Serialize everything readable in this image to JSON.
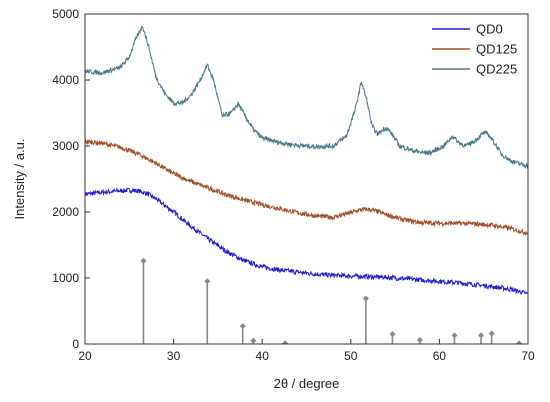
{
  "chart_data": {
    "type": "line",
    "xlabel": "2θ / degree",
    "ylabel": "Intensity / a.u.",
    "xlim": [
      20,
      70
    ],
    "ylim": [
      0,
      5000
    ],
    "x_ticks": [
      20,
      30,
      40,
      50,
      60,
      70
    ],
    "y_ticks": [
      0,
      1000,
      2000,
      3000,
      4000,
      5000
    ],
    "legend_position": "top-right",
    "series": [
      {
        "name": "QD0",
        "color": "#2222cc",
        "x": [
          20,
          22,
          24,
          25,
          26,
          27,
          28,
          30,
          32,
          34,
          36,
          38,
          40,
          42,
          44,
          46,
          48,
          50,
          52,
          54,
          56,
          58,
          60,
          62,
          64,
          66,
          68,
          70
        ],
        "y": [
          2270,
          2300,
          2320,
          2330,
          2320,
          2280,
          2200,
          2000,
          1780,
          1580,
          1400,
          1260,
          1170,
          1120,
          1090,
          1060,
          1040,
          1030,
          1020,
          1010,
          990,
          970,
          950,
          930,
          900,
          870,
          830,
          760
        ]
      },
      {
        "name": "QD125",
        "color": "#a0522d",
        "x": [
          20,
          22,
          24,
          26,
          28,
          30,
          32,
          34,
          36,
          38,
          40,
          42,
          44,
          46,
          48,
          50,
          51,
          52,
          53,
          54,
          56,
          58,
          60,
          62,
          64,
          66,
          68,
          70
        ],
        "y": [
          3070,
          3040,
          2980,
          2880,
          2740,
          2580,
          2460,
          2360,
          2260,
          2180,
          2110,
          2050,
          1990,
          1940,
          1920,
          1990,
          2030,
          2040,
          2010,
          1960,
          1880,
          1840,
          1830,
          1830,
          1820,
          1800,
          1750,
          1680
        ]
      },
      {
        "name": "QD225",
        "color": "#4a7a8c",
        "x": [
          20,
          22,
          24,
          25,
          25.8,
          26.5,
          27.2,
          28,
          29,
          30,
          31,
          32,
          33,
          33.8,
          34.5,
          35.5,
          36.5,
          37.3,
          38,
          39,
          40,
          42,
          44,
          46,
          48,
          49.5,
          50.5,
          51.2,
          51.8,
          52.4,
          53,
          54,
          54.8,
          55.5,
          57,
          58,
          59,
          60.5,
          61.5,
          62.2,
          63,
          64,
          65,
          65.5,
          66.2,
          67,
          68,
          69,
          70
        ],
        "y": [
          4130,
          4110,
          4190,
          4350,
          4640,
          4820,
          4500,
          4050,
          3800,
          3650,
          3650,
          3780,
          4000,
          4230,
          4000,
          3450,
          3500,
          3640,
          3470,
          3250,
          3120,
          3050,
          3010,
          2990,
          3000,
          3150,
          3550,
          3980,
          3700,
          3300,
          3180,
          3280,
          3150,
          3000,
          2930,
          2900,
          2900,
          3000,
          3150,
          3050,
          3000,
          3080,
          3200,
          3180,
          3050,
          2880,
          2780,
          2730,
          2700
        ]
      }
    ],
    "reference_peaks": {
      "color": "#888888",
      "x": [
        26.6,
        33.8,
        37.8,
        39.0,
        42.6,
        51.7,
        54.7,
        57.8,
        61.7,
        64.7,
        65.9,
        69.0
      ],
      "y": [
        1260,
        950,
        270,
        50,
        10,
        690,
        150,
        60,
        130,
        130,
        160,
        10
      ]
    }
  }
}
